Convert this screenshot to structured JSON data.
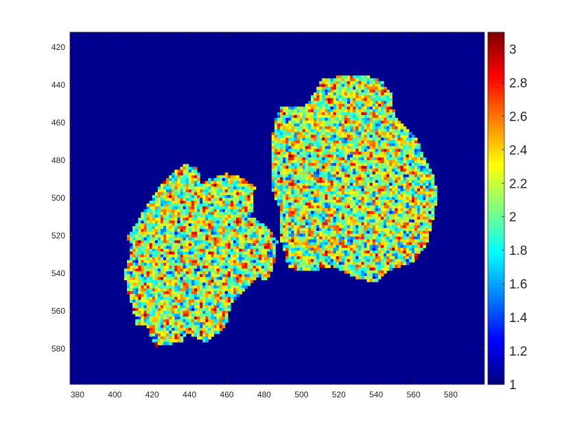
{
  "chart_data": {
    "type": "heatmap",
    "title": "",
    "xlabel": "",
    "ylabel": "",
    "colormap": "jet",
    "xlim": [
      376,
      598
    ],
    "ylim": [
      599,
      412
    ],
    "y_direction": "reversed",
    "grid": false,
    "background_value": 1,
    "x_ticks": [
      380,
      400,
      420,
      440,
      460,
      480,
      500,
      520,
      540,
      560,
      580
    ],
    "y_ticks": [
      420,
      440,
      460,
      480,
      500,
      520,
      540,
      560,
      580
    ],
    "colorbar": {
      "limits": [
        1,
        3.1
      ],
      "ticks": [
        1,
        1.2,
        1.4,
        1.6,
        1.8,
        2,
        2.2,
        2.4,
        2.6,
        2.8,
        3
      ],
      "tick_labels": [
        "1",
        "1.2",
        "1.4",
        "1.6",
        "1.8",
        "2",
        "2.2",
        "2.4",
        "2.6",
        "2.8",
        "3"
      ],
      "location": "right"
    },
    "regions": [
      {
        "name": "",
        "value_range": [
          1.2,
          3.1
        ],
        "outline": [
          [
            437,
            482
          ],
          [
            444,
            484
          ],
          [
            446,
            492
          ],
          [
            459,
            487
          ],
          [
            466,
            488
          ],
          [
            475,
            494
          ],
          [
            473,
            510
          ],
          [
            481,
            515
          ],
          [
            487,
            523
          ],
          [
            485,
            536
          ],
          [
            481,
            544
          ],
          [
            476,
            542
          ],
          [
            463,
            555
          ],
          [
            459,
            568
          ],
          [
            449,
            577
          ],
          [
            438,
            571
          ],
          [
            436,
            576
          ],
          [
            422,
            579
          ],
          [
            417,
            568
          ],
          [
            411,
            567
          ],
          [
            410,
            559
          ],
          [
            407,
            551
          ],
          [
            405,
            540
          ],
          [
            408,
            531
          ],
          [
            407,
            520
          ],
          [
            413,
            511
          ],
          [
            418,
            503
          ],
          [
            425,
            492
          ]
        ]
      },
      {
        "name": "",
        "value_range": [
          1.2,
          3.1
        ],
        "outline": [
          [
            496,
            452
          ],
          [
            502,
            451
          ],
          [
            508,
            443
          ],
          [
            511,
            437
          ],
          [
            524,
            435
          ],
          [
            535,
            435
          ],
          [
            543,
            438
          ],
          [
            548,
            445
          ],
          [
            550,
            457
          ],
          [
            556,
            462
          ],
          [
            561,
            467
          ],
          [
            565,
            477
          ],
          [
            570,
            486
          ],
          [
            573,
            498
          ],
          [
            570,
            512
          ],
          [
            567,
            524
          ],
          [
            560,
            534
          ],
          [
            547,
            538
          ],
          [
            540,
            545
          ],
          [
            528,
            542
          ],
          [
            517,
            536
          ],
          [
            503,
            539
          ],
          [
            493,
            537
          ],
          [
            488,
            518
          ],
          [
            488,
            505
          ],
          [
            484,
            495
          ],
          [
            484,
            477
          ],
          [
            485,
            461
          ],
          [
            489,
            452
          ]
        ]
      }
    ]
  }
}
